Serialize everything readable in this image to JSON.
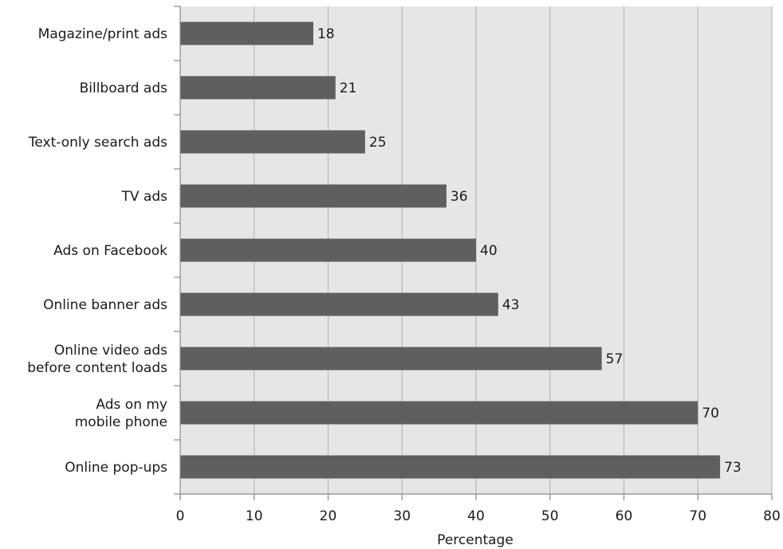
{
  "chart_data": {
    "type": "bar",
    "orientation": "horizontal",
    "categories": [
      "Magazine/print ads",
      "Billboard ads",
      "Text-only search ads",
      "TV ads",
      "Ads on Facebook",
      "Online banner ads",
      "Online video ads\nbefore content loads",
      "Ads on my\nmobile phone",
      "Online pop-ups"
    ],
    "values": [
      18,
      21,
      25,
      36,
      40,
      43,
      57,
      70,
      73
    ],
    "data_labels": [
      "18",
      "21",
      "25",
      "36",
      "40",
      "43",
      "57",
      "70",
      "73"
    ],
    "title": "",
    "xlabel": "Percentage",
    "ylabel": "",
    "xlim": [
      0,
      80
    ],
    "x_ticks": [
      0,
      10,
      20,
      30,
      40,
      50,
      60,
      70,
      80
    ],
    "x_tick_labels": [
      "0",
      "10",
      "20",
      "30",
      "40",
      "50",
      "60",
      "70",
      "80"
    ],
    "grid": "vertical",
    "legend": "none",
    "colors": {
      "bar": "#5f5e60",
      "plot_background": "#e6e6e8",
      "grid": "#b9b9bb",
      "axis": "#8a8a8a",
      "text": "#1a1a1a"
    }
  }
}
